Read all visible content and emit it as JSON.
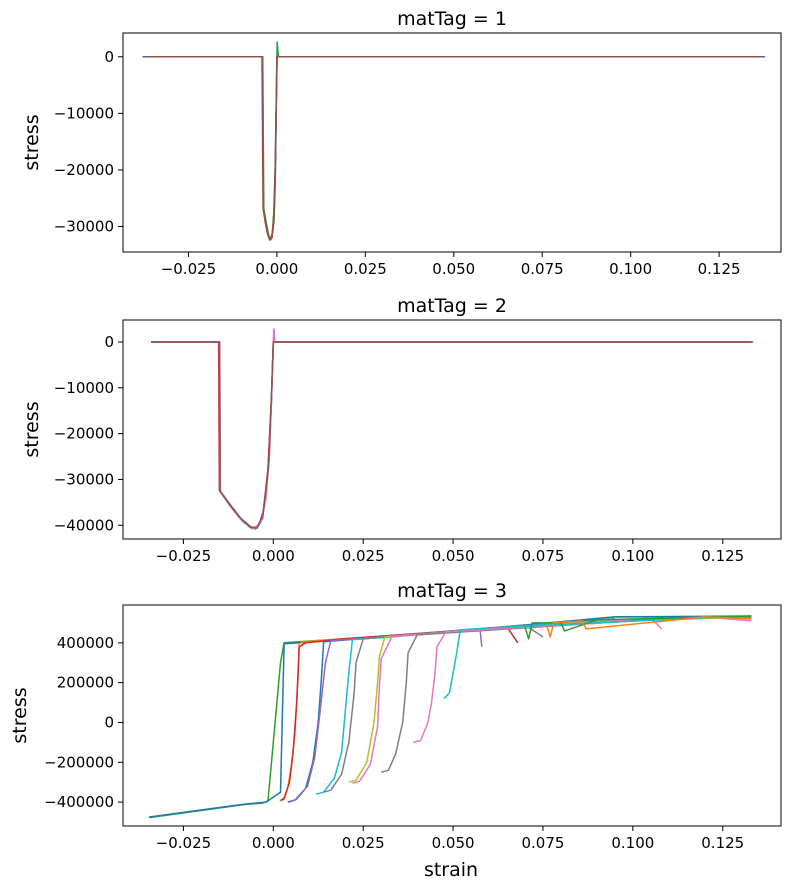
{
  "figure": {
    "xlabel": "strain"
  },
  "chart_data": [
    {
      "type": "line",
      "title": "matTag = 1",
      "ylabel": "stress",
      "xlabel": "",
      "xlim": [
        -0.0435,
        0.1425
      ],
      "ylim": [
        -34500,
        4200
      ],
      "xticks": [
        -0.025,
        0.0,
        0.025,
        0.05,
        0.075,
        0.1,
        0.125
      ],
      "xtick_labels": [
        "−0.025",
        "0.000",
        "0.025",
        "0.050",
        "0.075",
        "0.100",
        "0.125"
      ],
      "yticks": [
        0,
        -10000,
        -20000,
        -30000
      ],
      "ytick_labels": [
        "0",
        "−10000",
        "−20000",
        "−30000"
      ],
      "series": [
        {
          "color": "#1f77b4",
          "x": [
            -0.038,
            -0.004,
            -0.0038,
            -0.0032,
            -0.0025,
            -0.0018,
            -0.0012,
            -0.0006,
            -0.0003,
            0.0,
            0.0002,
            0.0004,
            0.138
          ],
          "y": [
            0,
            0,
            -27000,
            -29500,
            -31500,
            -32200,
            -31000,
            -25000,
            -12000,
            -2000,
            1800,
            0,
            0
          ]
        },
        {
          "color": "#2ca02c",
          "x": [
            -0.035,
            -0.004,
            -0.0037,
            -0.003,
            -0.0022,
            -0.0014,
            -0.0008,
            -0.0004,
            -0.0001,
            0.0001,
            0.0003,
            0.135
          ],
          "y": [
            0,
            0,
            -26800,
            -29400,
            -31800,
            -32000,
            -29000,
            -20000,
            -6000,
            2600,
            0,
            0
          ]
        },
        {
          "color": "#d62728",
          "x": [
            -0.036,
            -0.0042,
            -0.0039,
            -0.0033,
            -0.0026,
            -0.002,
            -0.0014,
            -0.0009,
            -0.0004,
            -0.0001,
            0.0,
            0.136
          ],
          "y": [
            0,
            0,
            -26600,
            -29200,
            -31400,
            -32400,
            -32000,
            -28000,
            -18000,
            -5000,
            0,
            0
          ]
        },
        {
          "color": "#8c564b",
          "x": [
            -0.037,
            -0.0041,
            -0.0038,
            -0.0031,
            -0.0024,
            -0.0017,
            -0.0011,
            -0.0006,
            -0.0002,
            0.0,
            0.137
          ],
          "y": [
            0,
            0,
            -27000,
            -29600,
            -31600,
            -32300,
            -30500,
            -24000,
            -10000,
            0,
            0
          ]
        }
      ]
    },
    {
      "type": "line",
      "title": "matTag = 2",
      "ylabel": "stress",
      "xlabel": "",
      "xlim": [
        -0.0418,
        0.1412
      ],
      "ylim": [
        -43000,
        4800
      ],
      "xticks": [
        -0.025,
        0.0,
        0.025,
        0.05,
        0.075,
        0.1,
        0.125
      ],
      "xtick_labels": [
        "−0.025",
        "0.000",
        "0.025",
        "0.050",
        "0.075",
        "0.100",
        "0.125"
      ],
      "yticks": [
        0,
        -10000,
        -20000,
        -30000,
        -40000
      ],
      "ytick_labels": [
        "0",
        "−10000",
        "−20000",
        "−30000",
        "−40000"
      ],
      "series": [
        {
          "color": "#1f77b4",
          "x": [
            -0.034,
            -0.015,
            -0.0148,
            -0.012,
            -0.009,
            -0.006,
            -0.0045,
            -0.003,
            -0.002,
            -0.0012,
            -0.0006,
            -0.0002,
            0.0,
            0.133
          ],
          "y": [
            0,
            0,
            -32500,
            -35500,
            -38500,
            -40500,
            -40500,
            -38000,
            -33000,
            -25000,
            -15000,
            -5000,
            0,
            0
          ]
        },
        {
          "color": "#2ca02c",
          "x": [
            -0.034,
            -0.015,
            -0.0148,
            -0.011,
            -0.008,
            -0.005,
            -0.003,
            -0.0015,
            -0.0005,
            0.0,
            0.1335
          ],
          "y": [
            0,
            0,
            -32600,
            -36500,
            -39500,
            -40800,
            -38500,
            -28000,
            -12000,
            0,
            0
          ]
        },
        {
          "color": "#d62728",
          "x": [
            -0.034,
            -0.0152,
            -0.015,
            -0.012,
            -0.009,
            -0.0065,
            -0.0045,
            -0.003,
            -0.0015,
            -0.0005,
            0.0,
            0.133
          ],
          "y": [
            0,
            0,
            -32400,
            -35600,
            -38600,
            -40400,
            -40600,
            -38500,
            -28000,
            -12000,
            0,
            0
          ]
        },
        {
          "color": "#9467bd",
          "x": [
            -0.033,
            -0.0149,
            -0.0147,
            -0.0115,
            -0.0085,
            -0.006,
            -0.004,
            -0.0025,
            -0.0012,
            -0.0004,
            0.0,
            0.0002,
            0.0004,
            0.133
          ],
          "y": [
            0,
            0,
            -32500,
            -36000,
            -39000,
            -40700,
            -40000,
            -36000,
            -26000,
            -10000,
            -1000,
            2800,
            0,
            0
          ]
        },
        {
          "color": "#e377c2",
          "x": [
            -0.034,
            -0.015,
            -0.0148,
            -0.012,
            -0.0085,
            -0.0055,
            -0.0035,
            -0.002,
            -0.001,
            -0.0003,
            0.0001,
            0.0003,
            0.133
          ],
          "y": [
            0,
            0,
            -32400,
            -35800,
            -39200,
            -40800,
            -39500,
            -34000,
            -24000,
            -8000,
            2500,
            0,
            0
          ]
        },
        {
          "color": "#8c564b",
          "x": [
            -0.034,
            -0.015,
            -0.0148,
            -0.0125,
            -0.0095,
            -0.0065,
            -0.0045,
            -0.0028,
            -0.0013,
            -0.0004,
            0.0,
            0.133
          ],
          "y": [
            0,
            0,
            -32600,
            -35200,
            -38200,
            -40400,
            -40600,
            -37500,
            -27000,
            -9000,
            0,
            0
          ]
        }
      ]
    },
    {
      "type": "line",
      "title": "matTag = 3",
      "ylabel": "stress",
      "xlabel": "strain",
      "xlim": [
        -0.0418,
        0.1412
      ],
      "ylim": [
        -520000,
        590000
      ],
      "xticks": [
        -0.025,
        0.0,
        0.025,
        0.05,
        0.075,
        0.1,
        0.125
      ],
      "xtick_labels": [
        "−0.025",
        "0.000",
        "0.025",
        "0.050",
        "0.075",
        "0.100",
        "0.125"
      ],
      "yticks": [
        400000,
        200000,
        0,
        -200000,
        -400000
      ],
      "ytick_labels": [
        "400000",
        "200000",
        "0",
        "−200000",
        "−400000"
      ],
      "series": [
        {
          "color": "#2ca02c",
          "x": [
            -0.0345,
            -0.008,
            -0.003,
            -0.0015,
            -0.001,
            0.0,
            0.001,
            0.002,
            0.003,
            0.06,
            0.095,
            0.133
          ],
          "y": [
            -478000,
            -412000,
            -405000,
            -395000,
            -300000,
            -100000,
            100000,
            300000,
            400000,
            470000,
            530000,
            535000
          ]
        },
        {
          "color": "#1f77b4",
          "x": [
            -0.0345,
            -0.008,
            -0.002,
            0.002,
            0.003,
            0.033,
            0.095,
            0.133
          ],
          "y": [
            -475000,
            -410000,
            -400000,
            -350000,
            395000,
            430000,
            530000,
            532000
          ]
        },
        {
          "color": "#ff7f0e",
          "x": [
            0.002,
            0.003,
            0.004,
            0.005,
            0.006,
            0.0065,
            0.007,
            0.0072,
            0.008,
            0.09,
            0.133
          ],
          "y": [
            -395000,
            -385000,
            -330000,
            -220000,
            -60000,
            100000,
            280000,
            395000,
            405000,
            505000,
            530000
          ]
        },
        {
          "color": "#d62728",
          "x": [
            0.002,
            0.003,
            0.0045,
            0.0055,
            0.0065,
            0.0072,
            0.009,
            0.02,
            0.065,
            0.068
          ],
          "y": [
            -392000,
            -380000,
            -300000,
            -150000,
            100000,
            380000,
            400000,
            420000,
            480000,
            400000
          ]
        },
        {
          "color": "#1f77b4",
          "x": [
            0.004,
            0.006,
            0.009,
            0.011,
            0.0125,
            0.0135,
            0.014,
            0.05,
            0.095
          ],
          "y": [
            -400000,
            -390000,
            -330000,
            -200000,
            0,
            250000,
            405000,
            460000,
            520000
          ]
        },
        {
          "color": "#9467bd",
          "x": [
            0.0045,
            0.0065,
            0.0095,
            0.0115,
            0.013,
            0.0145,
            0.016,
            0.0575,
            0.058
          ],
          "y": [
            -400000,
            -385000,
            -320000,
            -180000,
            50000,
            300000,
            410000,
            470000,
            380000
          ]
        },
        {
          "color": "#17becf",
          "x": [
            0.012,
            0.014,
            0.017,
            0.019,
            0.02,
            0.021,
            0.022,
            0.08,
            0.11
          ],
          "y": [
            -360000,
            -350000,
            -280000,
            -150000,
            50000,
            250000,
            415000,
            500000,
            525000
          ]
        },
        {
          "color": "#7f7f7f",
          "x": [
            0.014,
            0.016,
            0.019,
            0.021,
            0.0225,
            0.023,
            0.025,
            0.07,
            0.075
          ],
          "y": [
            -350000,
            -340000,
            -260000,
            -100000,
            150000,
            300000,
            420000,
            490000,
            430000
          ]
        },
        {
          "color": "#bcbd22",
          "x": [
            0.021,
            0.023,
            0.026,
            0.028,
            0.029,
            0.0295,
            0.031,
            0.1,
            0.133
          ],
          "y": [
            -300000,
            -290000,
            -200000,
            0,
            200000,
            330000,
            430000,
            520000,
            525000
          ]
        },
        {
          "color": "#e377c2",
          "x": [
            0.022,
            0.024,
            0.027,
            0.029,
            0.0295,
            0.03,
            0.033,
            0.105,
            0.108
          ],
          "y": [
            -305000,
            -295000,
            -210000,
            -20000,
            180000,
            320000,
            432000,
            525000,
            470000
          ]
        },
        {
          "color": "#7f7f7f",
          "x": [
            0.03,
            0.032,
            0.034,
            0.036,
            0.037,
            0.0375,
            0.04,
            0.115,
            0.133
          ],
          "y": [
            -250000,
            -240000,
            -160000,
            0,
            200000,
            350000,
            440000,
            528000,
            530000
          ]
        },
        {
          "color": "#e377c2",
          "x": [
            0.039,
            0.041,
            0.043,
            0.044,
            0.045,
            0.0455,
            0.048,
            0.12,
            0.133
          ],
          "y": [
            -100000,
            -90000,
            0,
            100000,
            250000,
            380000,
            455000,
            530000,
            510000
          ]
        },
        {
          "color": "#17becf",
          "x": [
            0.0475,
            0.049,
            0.05,
            0.051,
            0.052,
            0.06,
            0.125
          ],
          "y": [
            120000,
            150000,
            250000,
            350000,
            465000,
            475000,
            530000
          ]
        },
        {
          "color": "#2ca02c",
          "x": [
            0.07,
            0.071,
            0.072,
            0.08,
            0.081,
            0.09,
            0.133
          ],
          "y": [
            480000,
            420000,
            500000,
            500000,
            460000,
            515000,
            535000
          ]
        },
        {
          "color": "#ff7f0e",
          "x": [
            0.076,
            0.077,
            0.078,
            0.086,
            0.087,
            0.12,
            0.133
          ],
          "y": [
            490000,
            430000,
            500000,
            510000,
            470000,
            530000,
            520000
          ]
        }
      ]
    }
  ]
}
